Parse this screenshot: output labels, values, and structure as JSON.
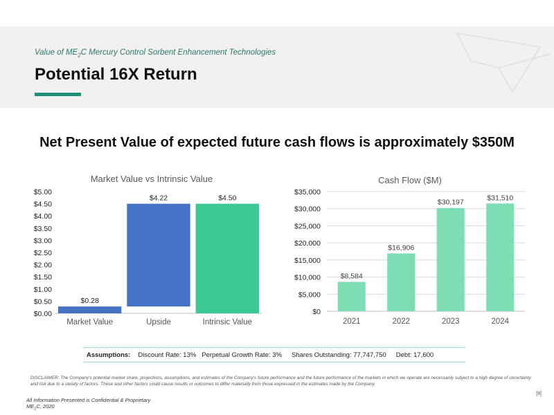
{
  "header": {
    "subtitle_pre": "Value of ME",
    "subtitle_sub": "2",
    "subtitle_post": "C Mercury Control Sorbent Enhancement Technologies",
    "title": "Potential 16X Return",
    "accent_color": "#1f8f7a"
  },
  "headline": "Net Present Value of expected future cash flows is approximately $350M",
  "chart_data": [
    {
      "type": "bar",
      "title": "Market Value vs Intrinsic Value",
      "categories": [
        "Market Value",
        "Upside",
        "Intrinsic Value"
      ],
      "values": [
        0.28,
        4.22,
        4.5
      ],
      "bar_bottoms": [
        0,
        0.28,
        0
      ],
      "data_labels": [
        "$0.28",
        "$4.22",
        "$4.50"
      ],
      "colors": [
        "#4472c4",
        "#4472c4",
        "#3cc895"
      ],
      "ylim": [
        0,
        5
      ],
      "yticks": [
        "$0.00",
        "$0.50",
        "$1.00",
        "$1.50",
        "$2.00",
        "$2.50",
        "$3.00",
        "$3.50",
        "$4.00",
        "$4.50",
        "$5.00"
      ],
      "grid": false
    },
    {
      "type": "bar",
      "title": "Cash Flow ($M)",
      "categories": [
        "2021",
        "2022",
        "2023",
        "2024"
      ],
      "values": [
        8584,
        16906,
        30197,
        31510
      ],
      "data_labels": [
        "$8,584",
        "$16,906",
        "$30,197",
        "$31,510"
      ],
      "colors": [
        "#7dddb4",
        "#7dddb4",
        "#7dddb4",
        "#7dddb4"
      ],
      "ylim": [
        0,
        35000
      ],
      "yticks": [
        "$0",
        "$5,000",
        "$10,000",
        "$15,000",
        "$20,000",
        "$25,000",
        "$30,000",
        "$35,000"
      ],
      "grid": true
    }
  ],
  "assumptions": {
    "label": "Assumptions:",
    "discount_rate": "Discount Rate:  13%",
    "perpetual_growth": "Perpetual Growth Rate:  3%",
    "shares": "Shares Outstanding: 77,747,750",
    "debt": "Debt:  17,600"
  },
  "disclaimer": "DISCLAIMER:  The Company's potential market share, projections, assumptions, and estimates of the Company's future performance and the future performance of the markets in which we operate are necessarily subject to a high degree of uncertainty and risk due to a variety of factors. These and other factors could cause results or outcomes to differ materially from those expressed in the estimates made by the Company.",
  "footer": {
    "confidential": "All Information Presented is Confidential & Proprietary",
    "company_pre": "ME",
    "company_sub": "2",
    "company_post": "C, 2020",
    "page": "[9]"
  }
}
